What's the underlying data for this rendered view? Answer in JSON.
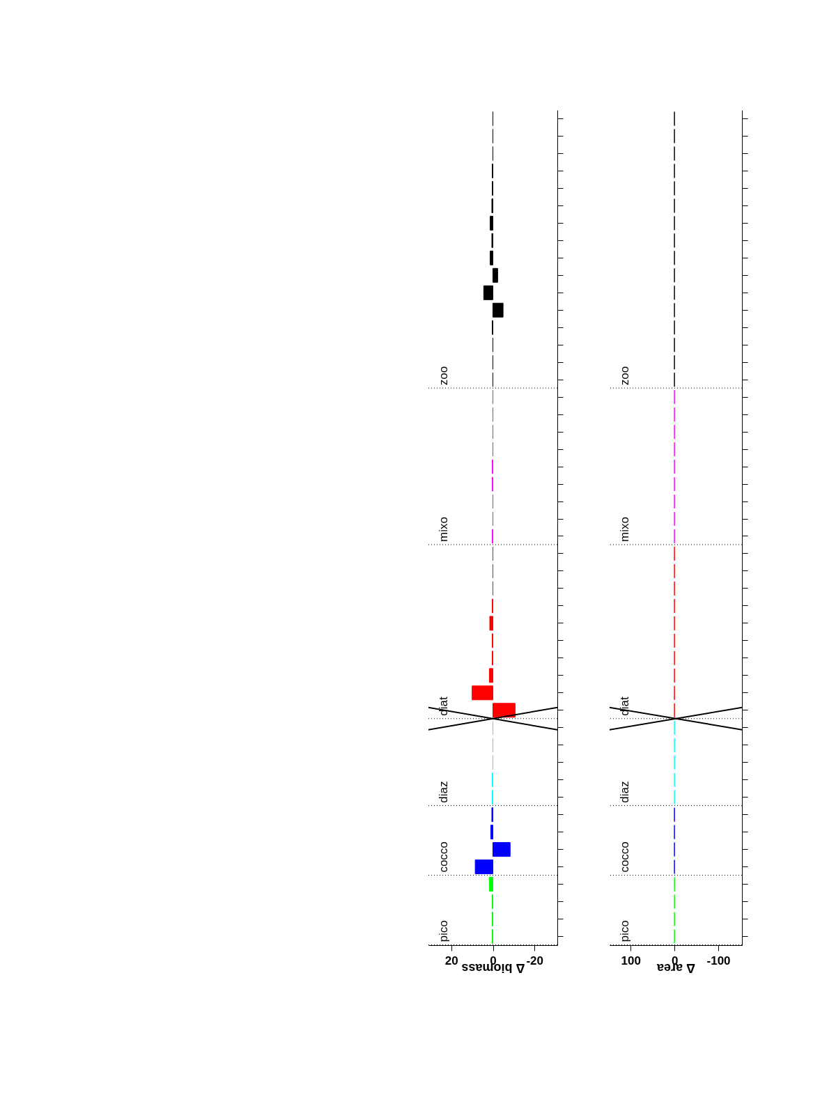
{
  "chart_data": [
    {
      "type": "bar",
      "orientation": "horizontal",
      "xlabel": "Δ biomass",
      "xlim": [
        31,
        -31
      ],
      "xticks": [
        20,
        0,
        -20
      ],
      "tick_labels": "x",
      "grid": false,
      "categories": [
        null,
        null,
        null,
        null,
        null,
        null,
        null,
        null,
        null,
        null,
        null,
        null,
        null,
        null,
        null,
        null,
        null,
        null,
        null,
        null,
        null,
        null,
        null,
        null,
        null,
        null,
        null,
        null,
        null,
        null,
        null,
        null,
        null,
        null,
        null,
        null,
        null,
        null,
        null,
        null,
        null,
        null,
        null,
        null,
        null,
        null,
        null,
        null
      ],
      "values": [
        0,
        0,
        0,
        0.3,
        0.3,
        0.5,
        1.3,
        0.5,
        1.3,
        -2.3,
        4.4,
        -4.9,
        0.3,
        0,
        0,
        0,
        0,
        0,
        0,
        0,
        0.3,
        0.3,
        0,
        0,
        0.3,
        0,
        0,
        0,
        0.3,
        1.5,
        0.3,
        0.3,
        1.7,
        10,
        -10.7,
        0,
        0,
        0,
        0.3,
        0.3,
        0.5,
        1.0,
        -8.3,
        8.5,
        1.7,
        0.3,
        0.3,
        0.3
      ],
      "colors": [
        "#000000",
        "#000000",
        "#000000",
        "#000000",
        "#000000",
        "#000000",
        "#000000",
        "#000000",
        "#000000",
        "#000000",
        "#000000",
        "#000000",
        "#000000",
        "#000000",
        "#000000",
        "#000000",
        "#ff00ff",
        "#ff00ff",
        "#ff00ff",
        "#ff00ff",
        "#ff00ff",
        "#ff00ff",
        "#ff00ff",
        "#ff00ff",
        "#ff00ff",
        "#ff0000",
        "#ff0000",
        "#ff0000",
        "#ff0000",
        "#ff0000",
        "#ff0000",
        "#ff0000",
        "#ff0000",
        "#ff0000",
        "#ff0000",
        "#00ffff",
        "#00ffff",
        "#00ffff",
        "#00ffff",
        "#00ffff",
        "#0000ff",
        "#0000ff",
        "#0000ff",
        "#0000ff",
        "#00ff00",
        "#00ff00",
        "#00ff00",
        "#00ff00"
      ],
      "annotations": [
        "zoo",
        "mixo",
        "diat",
        "diaz",
        "cocco",
        "pico"
      ]
    },
    {
      "type": "bar",
      "orientation": "horizontal",
      "xlabel": "Δ area",
      "xlim": [
        148,
        -154
      ],
      "xticks": [
        100,
        0,
        -100
      ],
      "tick_labels": "x",
      "grid": false,
      "categories": [
        null,
        null,
        null,
        null,
        null,
        null,
        null,
        null,
        null,
        null,
        null,
        null,
        null,
        null,
        null,
        null,
        null,
        null,
        null,
        null,
        null,
        null,
        null,
        null,
        null,
        null,
        null,
        null,
        null,
        null,
        null,
        null,
        null,
        null,
        null,
        null,
        null,
        null,
        null,
        null,
        null,
        null,
        null,
        null,
        null,
        null,
        null,
        null
      ],
      "values": [
        0,
        0,
        0,
        0,
        0,
        0,
        0,
        0,
        0,
        0,
        0,
        0,
        0,
        0,
        0,
        0,
        0,
        0,
        0,
        0,
        0,
        0,
        0,
        0,
        0,
        0,
        0,
        0,
        0,
        0,
        0,
        0,
        0,
        0,
        0,
        0,
        0,
        0,
        0,
        0,
        0,
        0,
        0,
        0,
        0,
        0,
        0,
        0
      ],
      "colors": [
        "#000000",
        "#000000",
        "#000000",
        "#000000",
        "#000000",
        "#000000",
        "#000000",
        "#000000",
        "#000000",
        "#000000",
        "#000000",
        "#000000",
        "#000000",
        "#000000",
        "#000000",
        "#000000",
        "#ff00ff",
        "#ff00ff",
        "#ff00ff",
        "#ff00ff",
        "#ff00ff",
        "#ff00ff",
        "#ff00ff",
        "#ff00ff",
        "#ff00ff",
        "#ff0000",
        "#ff0000",
        "#ff0000",
        "#ff0000",
        "#ff0000",
        "#ff0000",
        "#ff0000",
        "#ff0000",
        "#ff0000",
        "#ff0000",
        "#00ffff",
        "#00ffff",
        "#00ffff",
        "#00ffff",
        "#00ffff",
        "#0000ff",
        "#0000ff",
        "#0000ff",
        "#0000ff",
        "#00ff00",
        "#00ff00",
        "#00ff00",
        "#00ff00"
      ],
      "annotations": [
        "zoo",
        "mixo",
        "diat",
        "diaz",
        "cocco",
        "pico"
      ]
    }
  ]
}
